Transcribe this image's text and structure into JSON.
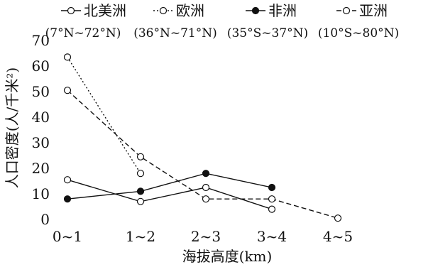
{
  "chart_data": {
    "type": "line",
    "xlabel": "海拔高度(km)",
    "ylabel": "人口密度(人/千米²)",
    "ylim": [
      0,
      70
    ],
    "yticks": [
      0,
      10,
      20,
      30,
      40,
      50,
      60,
      70
    ],
    "categories": [
      "0~1",
      "1~2",
      "2~3",
      "3~4",
      "4~5"
    ],
    "legend_position": "top",
    "series": [
      {
        "name": "北美洲",
        "range": "(7°N~72°N)",
        "values": [
          15.5,
          7,
          12.5,
          4,
          null
        ],
        "line": "solid",
        "marker": "open-circle"
      },
      {
        "name": "欧洲",
        "range": "(36°N~71°N)",
        "values": [
          63.5,
          18,
          null,
          null,
          null
        ],
        "line": "dotted",
        "marker": "open-circle"
      },
      {
        "name": "非洲",
        "range": "(35°S~37°N)",
        "values": [
          8,
          11,
          18,
          12.5,
          null
        ],
        "line": "solid",
        "marker": "filled-circle"
      },
      {
        "name": "亚洲",
        "range": "(10°S~80°N)",
        "values": [
          50.5,
          24.5,
          8,
          8,
          0.5
        ],
        "line": "dashed",
        "marker": "open-circle"
      }
    ]
  }
}
